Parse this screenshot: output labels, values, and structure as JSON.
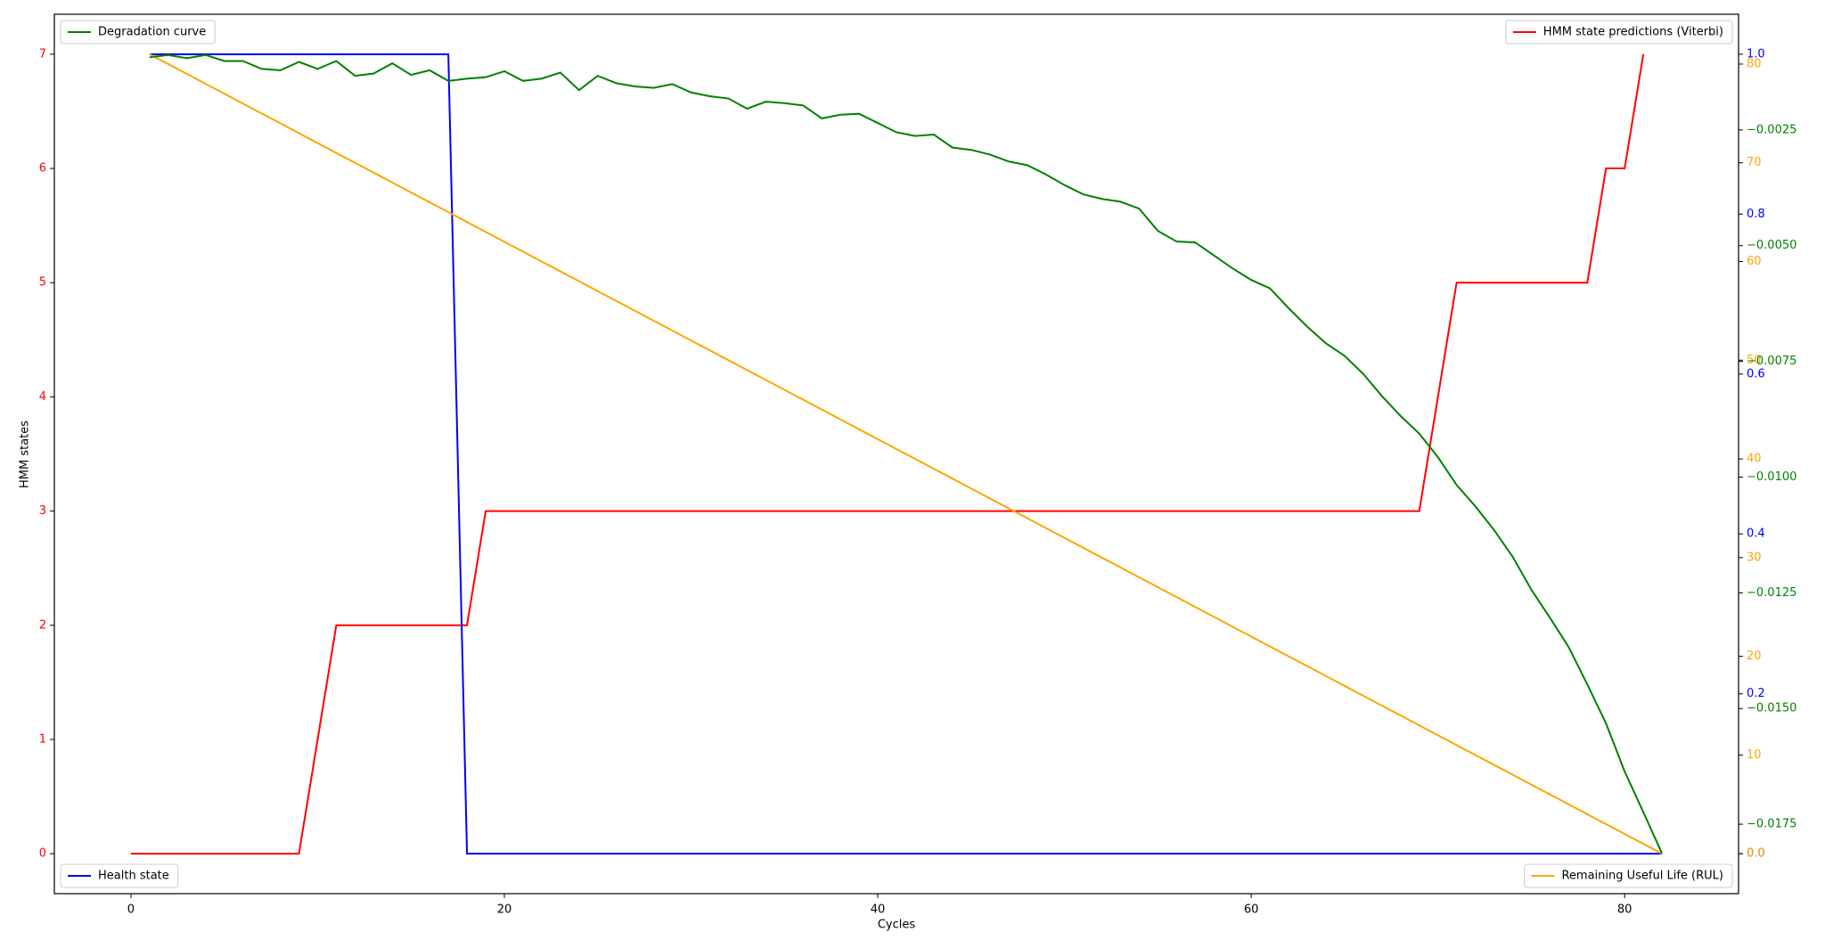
{
  "chart_data": {
    "type": "line",
    "xlabel": "Cycles",
    "ylabel": "HMM states",
    "x": [
      0,
      1,
      2,
      3,
      4,
      5,
      6,
      7,
      8,
      9,
      10,
      11,
      12,
      13,
      14,
      15,
      16,
      17,
      18,
      19,
      20,
      21,
      22,
      23,
      24,
      25,
      26,
      27,
      28,
      29,
      30,
      31,
      32,
      33,
      34,
      35,
      36,
      37,
      38,
      39,
      40,
      41,
      42,
      43,
      44,
      45,
      46,
      47,
      48,
      49,
      50,
      51,
      52,
      53,
      54,
      55,
      56,
      57,
      58,
      59,
      60,
      61,
      62,
      63,
      64,
      65,
      66,
      67,
      68,
      69,
      70,
      71,
      72,
      73,
      74,
      75,
      76,
      77,
      78,
      79,
      80,
      81,
      82
    ],
    "xlim": [
      -4.1,
      86.1
    ],
    "xticks": [
      0,
      20,
      40,
      60,
      80
    ],
    "ylim": [
      -0.35,
      7.35
    ],
    "yticks": [
      0,
      1,
      2,
      3,
      4,
      5,
      6,
      7
    ],
    "y2lim": [
      -0.05,
      1.05
    ],
    "y2ticks": [
      {
        "value": 0,
        "label": "0.0"
      },
      {
        "value": 0.2,
        "label": "0.2"
      },
      {
        "value": 0.4,
        "label": "0.4"
      },
      {
        "value": 0.6,
        "label": "0.6"
      },
      {
        "value": 0.8,
        "label": "0.8"
      },
      {
        "value": 1,
        "label": "1.0"
      }
    ],
    "y3lim": [
      -4.05,
      85.05
    ],
    "y3ticks": [
      {
        "value": 0,
        "label": "0.0"
      },
      10,
      20,
      30,
      40,
      50,
      60,
      70,
      80
    ],
    "y4lim": [
      -0.019,
      0.0
    ],
    "y4ticks": [
      {
        "value": -0.0025,
        "label": "−0.0025"
      },
      {
        "value": -0.005,
        "label": "−0.0050"
      },
      {
        "value": -0.0075,
        "label": "−0.0075"
      },
      {
        "value": -0.01,
        "label": "−0.0100"
      },
      {
        "value": -0.0125,
        "label": "−0.0125"
      },
      {
        "value": -0.015,
        "label": "−0.0150"
      },
      {
        "value": -0.0175,
        "label": "−0.0175"
      }
    ],
    "series": [
      {
        "name": "HMM state predictions (Viterbi)",
        "color": "#ff0000",
        "axis": "y",
        "legend": "upper right",
        "values": [
          0,
          0,
          0,
          0,
          0,
          0,
          0,
          0,
          0,
          0,
          1,
          2,
          2,
          2,
          2,
          2,
          2,
          2,
          2,
          3,
          3,
          3,
          3,
          3,
          3,
          3,
          3,
          3,
          3,
          3,
          3,
          3,
          3,
          3,
          3,
          3,
          3,
          3,
          3,
          3,
          3,
          3,
          3,
          3,
          3,
          3,
          3,
          3,
          3,
          3,
          3,
          3,
          3,
          3,
          3,
          3,
          3,
          3,
          3,
          3,
          3,
          3,
          3,
          3,
          3,
          3,
          3,
          3,
          3,
          3,
          4,
          5,
          5,
          5,
          5,
          5,
          5,
          5,
          5,
          6,
          6,
          7,
          null
        ]
      },
      {
        "name": "Health state",
        "color": "#0000ff",
        "axis": "y2",
        "legend": "lower left",
        "values": [
          null,
          1,
          1,
          1,
          1,
          1,
          1,
          1,
          1,
          1,
          1,
          1,
          1,
          1,
          1,
          1,
          1,
          1,
          0,
          0,
          0,
          0,
          0,
          0,
          0,
          0,
          0,
          0,
          0,
          0,
          0,
          0,
          0,
          0,
          0,
          0,
          0,
          0,
          0,
          0,
          0,
          0,
          0,
          0,
          0,
          0,
          0,
          0,
          0,
          0,
          0,
          0,
          0,
          0,
          0,
          0,
          0,
          0,
          0,
          0,
          0,
          0,
          0,
          0,
          0,
          0,
          0,
          0,
          0,
          0,
          0,
          0,
          0,
          0,
          0,
          0,
          0,
          0,
          0,
          0,
          0,
          0,
          0
        ]
      },
      {
        "name": "Remaining Useful Life (RUL)",
        "color": "#ffa500",
        "axis": "y3",
        "legend": "lower right",
        "values": [
          null,
          81,
          80,
          79,
          78,
          77,
          76,
          75,
          74,
          73,
          72,
          71,
          70,
          69,
          68,
          67,
          66,
          65,
          64,
          63,
          62,
          61,
          60,
          59,
          58,
          57,
          56,
          55,
          54,
          53,
          52,
          51,
          50,
          49,
          48,
          47,
          46,
          45,
          44,
          43,
          42,
          41,
          40,
          39,
          38,
          37,
          36,
          35,
          34,
          33,
          32,
          31,
          30,
          29,
          28,
          27,
          26,
          25,
          24,
          23,
          22,
          21,
          20,
          19,
          18,
          17,
          16,
          15,
          14,
          13,
          12,
          11,
          10,
          9,
          8,
          7,
          6,
          5,
          4,
          3,
          2,
          1,
          0
        ]
      },
      {
        "name": "Degradation curve",
        "color": "#008000",
        "axis": "y4",
        "legend": "upper left",
        "values": [
          null,
          -0.00093,
          -0.00088,
          -0.00095,
          -0.00088,
          -0.00101,
          -0.00101,
          -0.00118,
          -0.00121,
          -0.00103,
          -0.00118,
          -0.00101,
          -0.00133,
          -0.00128,
          -0.00106,
          -0.00131,
          -0.00121,
          -0.00144,
          -0.00139,
          -0.00136,
          -0.00123,
          -0.00144,
          -0.00139,
          -0.00126,
          -0.00164,
          -0.00133,
          -0.00149,
          -0.00156,
          -0.00159,
          -0.00151,
          -0.00169,
          -0.00177,
          -0.00182,
          -0.00204,
          -0.00189,
          -0.00192,
          -0.00197,
          -0.00225,
          -0.00217,
          -0.00215,
          -0.00235,
          -0.00255,
          -0.00263,
          -0.0026,
          -0.00288,
          -0.00293,
          -0.00303,
          -0.00318,
          -0.00326,
          -0.00346,
          -0.00369,
          -0.00389,
          -0.00399,
          -0.00405,
          -0.0042,
          -0.00468,
          -0.00491,
          -0.00493,
          -0.00521,
          -0.00549,
          -0.00574,
          -0.00592,
          -0.00635,
          -0.00675,
          -0.00711,
          -0.00738,
          -0.00777,
          -0.00825,
          -0.00868,
          -0.00906,
          -0.00957,
          -0.01017,
          -0.01063,
          -0.01114,
          -0.01172,
          -0.01243,
          -0.01304,
          -0.01367,
          -0.01448,
          -0.01532,
          -0.01636,
          -0.01724,
          -0.01813
        ]
      }
    ]
  }
}
